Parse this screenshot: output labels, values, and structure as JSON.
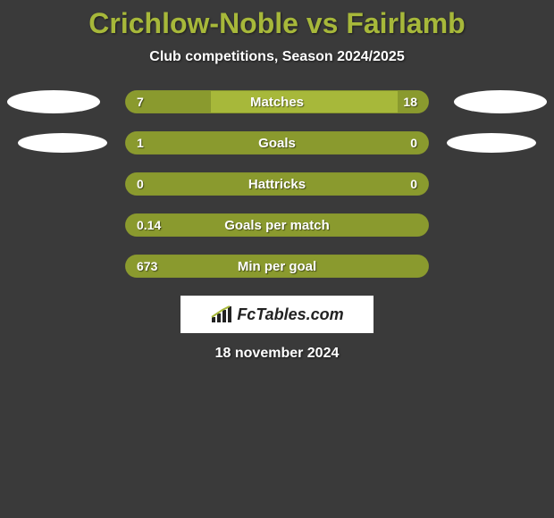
{
  "title": "Crichlow-Noble vs Fairlamb",
  "subtitle": "Club competitions, Season 2024/2025",
  "date": "18 november 2024",
  "logo_text": "FcTables.com",
  "colors": {
    "background": "#3a3a3a",
    "accent": "#a7b83a",
    "accent_dark": "#8a9a2e",
    "text": "#ffffff",
    "ellipse": "#ffffff"
  },
  "typography": {
    "title_fontsize": 32,
    "subtitle_fontsize": 16,
    "bar_label_fontsize": 15,
    "bar_value_fontsize": 14,
    "date_fontsize": 16
  },
  "rows": [
    {
      "label": "Matches",
      "left_value": "7",
      "right_value": "18",
      "left_pct": 28,
      "right_pct": 10,
      "show_left_ellipse": true,
      "show_right_ellipse": true,
      "ellipse_size": "large"
    },
    {
      "label": "Goals",
      "left_value": "1",
      "right_value": "0",
      "left_pct": 78,
      "right_pct": 22,
      "show_left_ellipse": true,
      "show_right_ellipse": true,
      "ellipse_size": "small"
    },
    {
      "label": "Hattricks",
      "left_value": "0",
      "right_value": "0",
      "left_pct": 100,
      "right_pct": 0,
      "show_left_ellipse": false,
      "show_right_ellipse": false
    },
    {
      "label": "Goals per match",
      "left_value": "0.14",
      "right_value": "",
      "left_pct": 100,
      "right_pct": 0,
      "show_left_ellipse": false,
      "show_right_ellipse": false
    },
    {
      "label": "Min per goal",
      "left_value": "673",
      "right_value": "",
      "left_pct": 100,
      "right_pct": 0,
      "show_left_ellipse": false,
      "show_right_ellipse": false
    }
  ]
}
